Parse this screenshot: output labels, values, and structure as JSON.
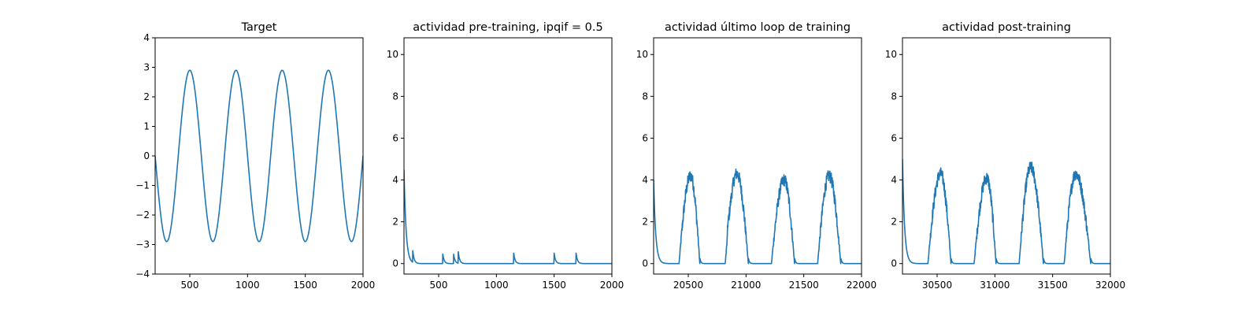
{
  "colors": {
    "line": "#1f77b4"
  },
  "chart_data": [
    {
      "type": "line",
      "title": "Target",
      "xlim": [
        200,
        2000
      ],
      "ylim": [
        -4,
        4
      ],
      "xticks": [
        500,
        1000,
        1500,
        2000
      ],
      "yticks": [
        -4,
        -3,
        -2,
        -1,
        0,
        1,
        2,
        3,
        4
      ],
      "series": [
        {
          "shape": "sinusoid",
          "x": [
            200,
            300,
            400,
            500,
            600,
            700,
            800,
            900,
            1000,
            1100,
            1200,
            1300,
            1400,
            1500,
            1600,
            1700,
            1800,
            1900,
            2000
          ],
          "y": [
            0.1,
            -2.8,
            -0.5,
            2.9,
            0.3,
            -2.9,
            -0.2,
            2.9,
            0.1,
            -2.9,
            0.0,
            2.9,
            -0.1,
            -2.9,
            0.3,
            2.9,
            -0.3,
            -2.9,
            -0.2
          ]
        }
      ]
    },
    {
      "type": "line",
      "title": "actividad pre-training, ipqif = 0.5",
      "xlim": [
        200,
        2000
      ],
      "ylim": [
        -0.5,
        10.8
      ],
      "xticks": [
        500,
        1000,
        1500,
        2000
      ],
      "yticks": [
        0,
        2,
        4,
        6,
        8,
        10
      ],
      "series": [
        {
          "shape": "decay-spikes",
          "start_value": 4.5,
          "spikes": [
            {
              "x": 275,
              "y": 0.6
            },
            {
              "x": 535,
              "y": 0.5
            },
            {
              "x": 630,
              "y": 0.45
            },
            {
              "x": 670,
              "y": 0.55
            },
            {
              "x": 1150,
              "y": 0.5
            },
            {
              "x": 1500,
              "y": 0.5
            },
            {
              "x": 1690,
              "y": 0.5
            }
          ]
        }
      ]
    },
    {
      "type": "line",
      "title": "actividad último loop de training",
      "xlim": [
        20200,
        22000
      ],
      "ylim": [
        -0.5,
        10.8
      ],
      "xticks": [
        20500,
        21000,
        21500,
        22000
      ],
      "yticks": [
        0,
        2,
        4,
        6,
        8,
        10
      ],
      "series": [
        {
          "shape": "decay-bumps",
          "start_value": 4.0,
          "spikes": [
            {
              "x": 20840,
              "y": 0.5
            }
          ],
          "bumps": [
            {
              "start": 20420,
              "peak_x": 20520,
              "peak": 4.2,
              "end": 20600
            },
            {
              "start": 20820,
              "peak_x": 20920,
              "peak": 4.3,
              "end": 21020
            },
            {
              "start": 21220,
              "peak_x": 21330,
              "peak": 4.0,
              "end": 21420
            },
            {
              "start": 21620,
              "peak_x": 21720,
              "peak": 4.2,
              "end": 21820
            }
          ]
        }
      ]
    },
    {
      "type": "line",
      "title": "actividad post-training",
      "xlim": [
        30200,
        32000
      ],
      "ylim": [
        -0.5,
        10.8
      ],
      "xticks": [
        30500,
        31000,
        31500,
        32000
      ],
      "yticks": [
        0,
        2,
        4,
        6,
        8,
        10
      ],
      "series": [
        {
          "shape": "decay-bumps",
          "start_value": 5.0,
          "spikes": [],
          "bumps": [
            {
              "start": 30420,
              "peak_x": 30530,
              "peak": 4.3,
              "end": 30620
            },
            {
              "start": 30820,
              "peak_x": 30930,
              "peak": 4.1,
              "end": 31010
            },
            {
              "start": 31210,
              "peak_x": 31310,
              "peak": 4.6,
              "end": 31420
            },
            {
              "start": 31600,
              "peak_x": 31700,
              "peak": 4.3,
              "end": 31830
            }
          ]
        }
      ]
    }
  ]
}
